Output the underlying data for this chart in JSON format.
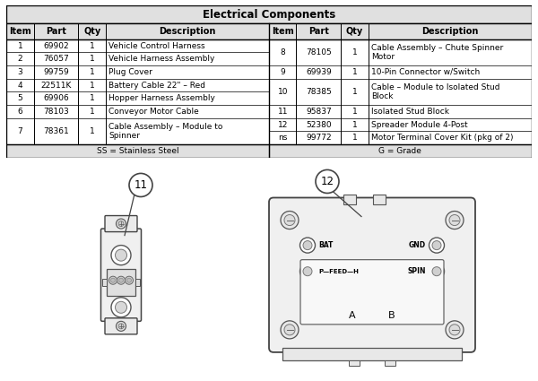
{
  "title": "Electrical Components",
  "col_headers": [
    "Item",
    "Part",
    "Qty",
    "Description",
    "Item",
    "Part",
    "Qty",
    "Description"
  ],
  "rows_left": [
    [
      "1",
      "69902",
      "1",
      "Vehicle Control Harness"
    ],
    [
      "2",
      "76057",
      "1",
      "Vehicle Harness Assembly"
    ],
    [
      "3",
      "99759",
      "1",
      "Plug Cover"
    ],
    [
      "4",
      "22511K",
      "1",
      "Battery Cable 22\" – Red"
    ],
    [
      "5",
      "69906",
      "1",
      "Hopper Harness Assembly"
    ],
    [
      "6",
      "78103",
      "1",
      "Conveyor Motor Cable"
    ],
    [
      "7",
      "78361",
      "1",
      "Cable Assembly – Module to\nSpinner"
    ]
  ],
  "rows_right": [
    [
      "8",
      "78105",
      "1",
      "Cable Assembly – Chute Spinner\nMotor"
    ],
    [
      "9",
      "69939",
      "1",
      "10-Pin Connector w/Switch"
    ],
    [
      "10",
      "78385",
      "1",
      "Cable – Module to Isolated Stud\nBlock"
    ],
    [
      "11",
      "95837",
      "1",
      "Isolated Stud Block"
    ],
    [
      "12",
      "52380",
      "1",
      "Spreader Module 4-Post"
    ],
    [
      "ns",
      "99772",
      "1",
      "Motor Terminal Cover Kit (pkg of 2)"
    ]
  ],
  "footer_left": "SS = Stainless Steel",
  "footer_right": "G = Grade",
  "bg": "#ffffff",
  "header_bg": "#e0e0e0",
  "row_bg": "#ffffff",
  "border": "#000000",
  "text": "#000000",
  "fs": 6.5,
  "tfs": 8.5,
  "hfs": 7.0
}
